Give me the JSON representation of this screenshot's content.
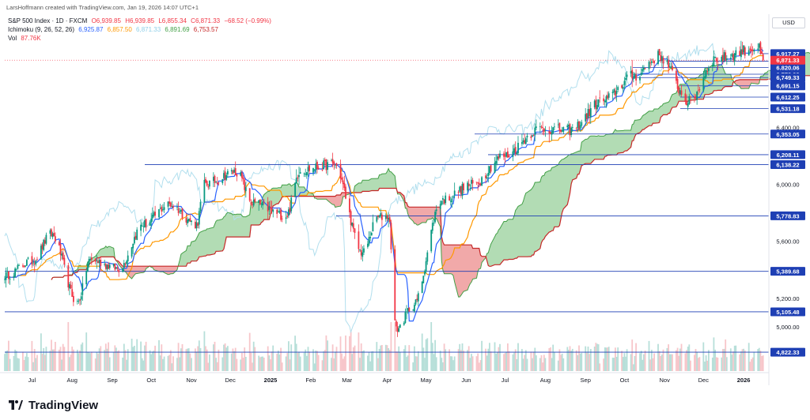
{
  "header": {
    "credit": "LarsHoffmann created with TradingView.com, Jan 19, 2026 14:07 UTC+1",
    "symbol": "S&P 500 Index · 1D · FXCM",
    "ohlc": {
      "open": "O6,939.85",
      "high": "H6,939.85",
      "low": "L6,855.34",
      "close": "C6,871.33",
      "change": "−68.52 (−0.99%)"
    },
    "ichimoku": {
      "label": "Ichimoku (9, 26, 52, 26)",
      "conversion": "6,925.87",
      "base": "6,857.50",
      "lagging": "6,871.33",
      "lead_a": "6,891.69",
      "lead_b": "6,753.57"
    },
    "volume": {
      "label": "Vol",
      "value": "87.76K"
    }
  },
  "axis": {
    "currency": "USD",
    "tick_labels": [
      "6,400.00",
      "6,000.00",
      "5,600.00",
      "5,200.00",
      "5,000.00"
    ],
    "level_labels": [
      "6,917.27",
      "6,864.75",
      "6,820.06",
      "6,772.92",
      "6,749.33",
      "6,691.15",
      "6,612.25",
      "6,531.18",
      "6,353.05",
      "6,208.11",
      "6,138.22",
      "5,778.83",
      "5,389.68",
      "5,105.48",
      "4,822.33"
    ],
    "current_price": "6,871.33",
    "month_labels": [
      "Jul",
      "Aug",
      "Sep",
      "Oct",
      "Nov",
      "Dec",
      "2025",
      "Feb",
      "Mar",
      "Apr",
      "May",
      "Jun",
      "Jul",
      "Aug",
      "Sep",
      "Oct",
      "Nov",
      "Dec",
      "2026"
    ]
  },
  "brand": {
    "name": "TradingView"
  },
  "colors": {
    "up": "#089981",
    "down": "#f23645",
    "conversion": "#2962ff",
    "base": "#ff9800",
    "lagging": "#b2dfee",
    "lead_a": "#43a047",
    "lead_b": "#c62828",
    "cloud_bull": "#a5d6a7",
    "cloud_bear": "#ef9a9a",
    "level_line": "#1e3fb4",
    "level_label_bg": "#1e3fb4",
    "current_bg": "#f23645",
    "volume_up": "#b7dfd9",
    "volume_down": "#f7c6ca"
  },
  "chart_data": {
    "type": "line",
    "title": "S&P 500 Index · 1D · FXCM",
    "xlabel": "",
    "ylabel": "",
    "ylim": [
      4650,
      7100
    ],
    "x": [
      "2024-06-10",
      "2024-07-01",
      "2024-07-16",
      "2024-08-05",
      "2024-08-15",
      "2024-09-06",
      "2024-09-25",
      "2024-10-15",
      "2024-11-05",
      "2024-11-11",
      "2024-12-06",
      "2024-12-18",
      "2025-01-13",
      "2025-01-24",
      "2025-02-19",
      "2025-03-13",
      "2025-03-25",
      "2025-04-02",
      "2025-04-08",
      "2025-04-21",
      "2025-05-13",
      "2025-06-06",
      "2025-06-30",
      "2025-07-28",
      "2025-08-20",
      "2025-09-15",
      "2025-10-08",
      "2025-10-28",
      "2025-11-20",
      "2025-12-10",
      "2026-01-12",
      "2026-01-16"
    ],
    "series": [
      {
        "values": [
          5360,
          5460,
          5650,
          5170,
          5470,
          5410,
          5720,
          5860,
          5720,
          6000,
          6090,
          5870,
          5780,
          6100,
          6140,
          5520,
          5770,
          5780,
          4980,
          5150,
          5890,
          5999,
          6200,
          6390,
          6380,
          6590,
          6760,
          6900,
          6580,
          6880,
          6960,
          6871
        ]
      }
    ],
    "levels": [
      6917.27,
      6864.75,
      6820.06,
      6772.92,
      6749.33,
      6691.15,
      6612.25,
      6531.18,
      6353.05,
      6208.11,
      6138.22,
      5778.83,
      5389.68,
      5105.48,
      4822.33
    ],
    "current_price": 6871.33,
    "last": {
      "conversion": 6925.87,
      "base": 6857.5,
      "lagging": 6871.33,
      "lead_a": 6891.69,
      "lead_b": 6753.57,
      "volume": "87.76K"
    }
  }
}
